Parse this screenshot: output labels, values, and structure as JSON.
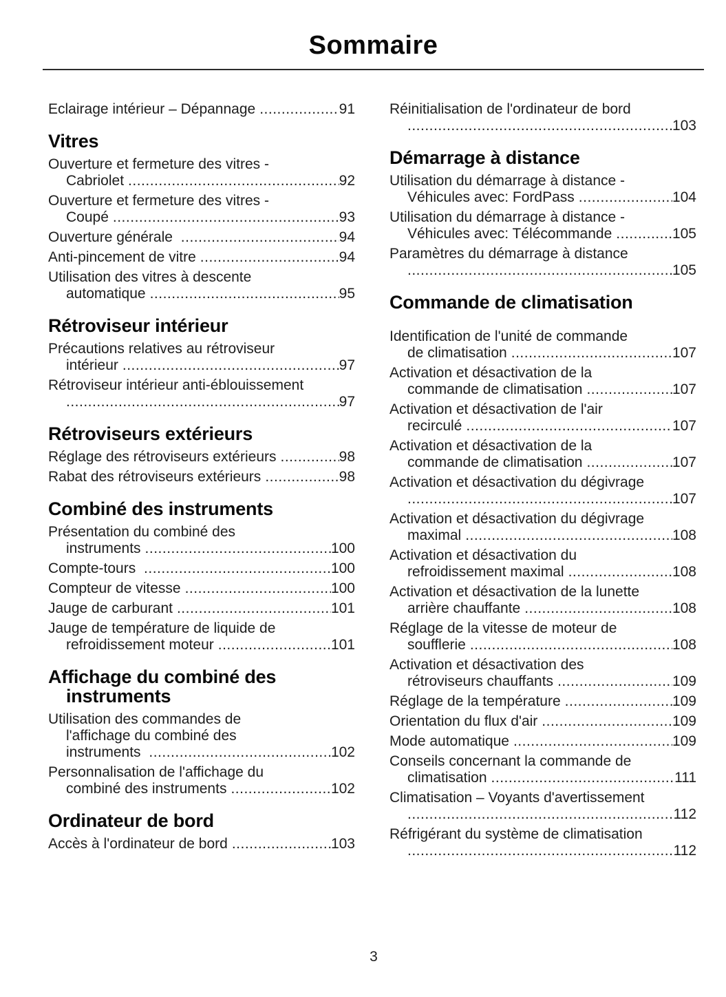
{
  "title": "Sommaire",
  "page_number": "3",
  "text_color": "#1d1d1d",
  "heading_color": "#0a0a0a",
  "rule_color": "#2b2b2b",
  "columns": [
    {
      "blocks": [
        {
          "heading_lines": [],
          "entries": [
            {
              "lines": [
                "Eclairage intérieur – Dépannage"
              ],
              "page": "91"
            }
          ]
        },
        {
          "heading_lines": [
            "Vitres"
          ],
          "entries": [
            {
              "lines": [
                "Ouverture et fermeture des vitres -",
                "Cabriolet"
              ],
              "page": "92"
            },
            {
              "lines": [
                "Ouverture et fermeture des vitres -",
                "Coupé"
              ],
              "page": "93"
            },
            {
              "lines": [
                "Ouverture générale "
              ],
              "page": "94"
            },
            {
              "lines": [
                "Anti-pincement de vitre"
              ],
              "page": "94"
            },
            {
              "lines": [
                "Utilisation des vitres à descente",
                "automatique"
              ],
              "page": "95"
            }
          ]
        },
        {
          "heading_lines": [
            "Rétroviseur intérieur"
          ],
          "entries": [
            {
              "lines": [
                "Précautions relatives au rétroviseur",
                "intérieur"
              ],
              "page": "97"
            },
            {
              "lines": [
                "Rétroviseur intérieur anti-éblouissement",
                ""
              ],
              "page": "97"
            }
          ]
        },
        {
          "heading_lines": [
            "Rétroviseurs extérieurs"
          ],
          "entries": [
            {
              "lines": [
                "Réglage des rétroviseurs extérieurs"
              ],
              "page": "98"
            },
            {
              "lines": [
                "Rabat des rétroviseurs extérieurs"
              ],
              "page": "98"
            }
          ]
        },
        {
          "heading_lines": [
            "Combiné des instruments"
          ],
          "entries": [
            {
              "lines": [
                "Présentation du combiné des",
                "instruments"
              ],
              "page": "100"
            },
            {
              "lines": [
                "Compte-tours "
              ],
              "page": "100"
            },
            {
              "lines": [
                "Compteur de vitesse"
              ],
              "page": "100"
            },
            {
              "lines": [
                "Jauge de carburant"
              ],
              "page": "101"
            },
            {
              "lines": [
                "Jauge de température de liquide de",
                "refroidissement moteur"
              ],
              "page": "101"
            }
          ]
        },
        {
          "heading_lines": [
            "Affichage du combiné des",
            "instruments"
          ],
          "entries": [
            {
              "lines": [
                "Utilisation des commandes de",
                "l'affichage du combiné des",
                "instruments "
              ],
              "page": "102"
            },
            {
              "lines": [
                "Personnalisation de l'affichage du",
                "combiné des instruments"
              ],
              "page": "102"
            }
          ]
        },
        {
          "heading_lines": [
            "Ordinateur de bord"
          ],
          "entries": [
            {
              "lines": [
                "Accès à l'ordinateur de bord"
              ],
              "page": "103"
            }
          ]
        }
      ]
    },
    {
      "blocks": [
        {
          "heading_lines": [],
          "entries": [
            {
              "lines": [
                "Réinitialisation de l'ordinateur de bord",
                ""
              ],
              "page": "103"
            }
          ]
        },
        {
          "heading_lines": [
            "Démarrage à distance"
          ],
          "entries": [
            {
              "lines": [
                "Utilisation du démarrage à distance -",
                "Véhicules avec: FordPass"
              ],
              "page": "104"
            },
            {
              "lines": [
                "Utilisation du démarrage à distance -",
                "Véhicules avec: Télécommande"
              ],
              "page": "105"
            },
            {
              "lines": [
                "Paramètres du démarrage à distance",
                ""
              ],
              "page": "105"
            }
          ]
        },
        {
          "heading_lines": [
            "Commande de climatisation"
          ],
          "extra_gap_before_entries": true,
          "entries": [
            {
              "lines": [
                "Identification de l'unité de commande",
                "de climatisation"
              ],
              "page": "107"
            },
            {
              "lines": [
                "Activation et désactivation de la",
                "commande de climatisation"
              ],
              "page": "107"
            },
            {
              "lines": [
                "Activation et désactivation de l'air",
                "recirculé"
              ],
              "page": "107"
            },
            {
              "lines": [
                "Activation et désactivation de la",
                "commande de climatisation"
              ],
              "page": "107"
            },
            {
              "lines": [
                "Activation et désactivation du dégivrage",
                ""
              ],
              "page": "107"
            },
            {
              "lines": [
                "Activation et désactivation du dégivrage",
                "maximal"
              ],
              "page": "108"
            },
            {
              "lines": [
                "Activation et désactivation du",
                "refroidissement maximal"
              ],
              "page": "108"
            },
            {
              "lines": [
                "Activation et désactivation de la lunette",
                "arrière chauffante"
              ],
              "page": "108"
            },
            {
              "lines": [
                "Réglage de la vitesse de moteur de",
                "soufflerie"
              ],
              "page": "108"
            },
            {
              "lines": [
                "Activation et désactivation des",
                "rétroviseurs chauffants"
              ],
              "page": "109"
            },
            {
              "lines": [
                "Réglage de la température"
              ],
              "page": "109"
            },
            {
              "lines": [
                "Orientation du flux d'air"
              ],
              "page": "109"
            },
            {
              "lines": [
                "Mode automatique"
              ],
              "page": "109"
            },
            {
              "lines": [
                "Conseils concernant la commande de",
                "climatisation"
              ],
              "page": "111"
            },
            {
              "lines": [
                "Climatisation – Voyants d'avertissement",
                ""
              ],
              "page": "112"
            },
            {
              "lines": [
                "Réfrigérant du système de climatisation",
                ""
              ],
              "page": "112"
            }
          ]
        }
      ]
    }
  ]
}
